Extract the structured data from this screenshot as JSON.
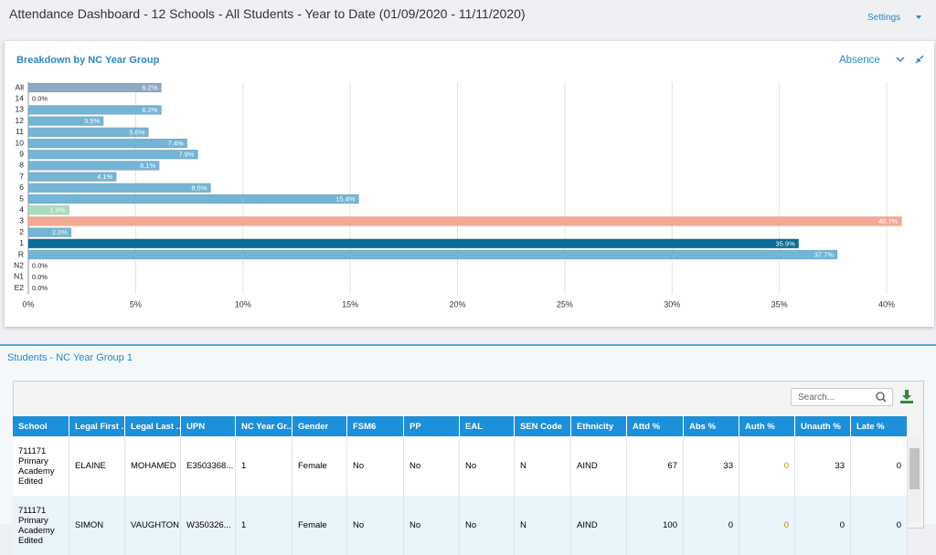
{
  "header": {
    "title": "Attendance Dashboard - 12 Schools - All Students - Year to Date (01/09/2020 - 11/11/2020)",
    "settings": "Settings"
  },
  "chart_data": {
    "type": "bar",
    "orientation": "horizontal",
    "title": "Breakdown by NC Year Group",
    "measure": "Absence",
    "categories": [
      "All",
      "14",
      "13",
      "12",
      "11",
      "10",
      "9",
      "8",
      "7",
      "6",
      "5",
      "4",
      "3",
      "2",
      "1",
      "R",
      "N2",
      "N1",
      "E2"
    ],
    "values": [
      6.2,
      0.0,
      6.2,
      3.5,
      5.6,
      7.4,
      7.9,
      6.1,
      4.1,
      8.5,
      15.4,
      1.9,
      40.7,
      2.0,
      35.9,
      37.7,
      0.0,
      0.0,
      0.0
    ],
    "value_labels": [
      "6.2%",
      "0.0%",
      "6.2%",
      "3.5%",
      "5.6%",
      "7.4%",
      "7.9%",
      "6.1%",
      "4.1%",
      "8.5%",
      "15.4%",
      "1.9%",
      "40.7%",
      "2.0%",
      "35.9%",
      "37.7%",
      "0.0%",
      "0.0%",
      "0.0%"
    ],
    "colors": [
      "#8ea9c1",
      "#74b4d4",
      "#74b4d4",
      "#74b4d4",
      "#74b4d4",
      "#74b4d4",
      "#74b4d4",
      "#74b4d4",
      "#74b4d4",
      "#74b4d4",
      "#74b4d4",
      "#a9dbbd",
      "#f5a995",
      "#74b4d4",
      "#0c6b96",
      "#74b4d4",
      "#74b4d4",
      "#74b4d4",
      "#74b4d4"
    ],
    "xlim": [
      0,
      42
    ],
    "xticks": [
      {
        "value": 0,
        "label": "0%"
      },
      {
        "value": 5,
        "label": "5%"
      },
      {
        "value": 10,
        "label": "10%"
      },
      {
        "value": 15,
        "label": "15%"
      },
      {
        "value": 20,
        "label": "20%"
      },
      {
        "value": 25,
        "label": "25%"
      },
      {
        "value": 30,
        "label": "30%"
      },
      {
        "value": 35,
        "label": "35%"
      },
      {
        "value": 40,
        "label": "40%"
      }
    ],
    "grid": true
  },
  "students": {
    "title": "Students - NC Year Group 1",
    "search_placeholder": "Search...",
    "columns": [
      "School",
      "Legal First ...",
      "Legal Last ...",
      "UPN",
      "NC Year Gr...",
      "Gender",
      "FSM6",
      "PP",
      "EAL",
      "SEN Code",
      "Ethnicity",
      "Attd %",
      "Abs %",
      "Auth %",
      "Unauth %",
      "Late %"
    ],
    "rows": [
      [
        "711171 Primary Academy Edited",
        "ELAINE",
        "MOHAMED",
        "E3503368...",
        "1",
        "Female",
        "No",
        "No",
        "No",
        "N",
        "AIND",
        67,
        33,
        0,
        33,
        0
      ],
      [
        "711171 Primary Academy Edited",
        "SIMON",
        "VAUGHTON",
        "W350326...",
        "1",
        "Female",
        "No",
        "No",
        "No",
        "N",
        "AIND",
        100,
        0,
        0,
        0,
        0
      ]
    ]
  }
}
